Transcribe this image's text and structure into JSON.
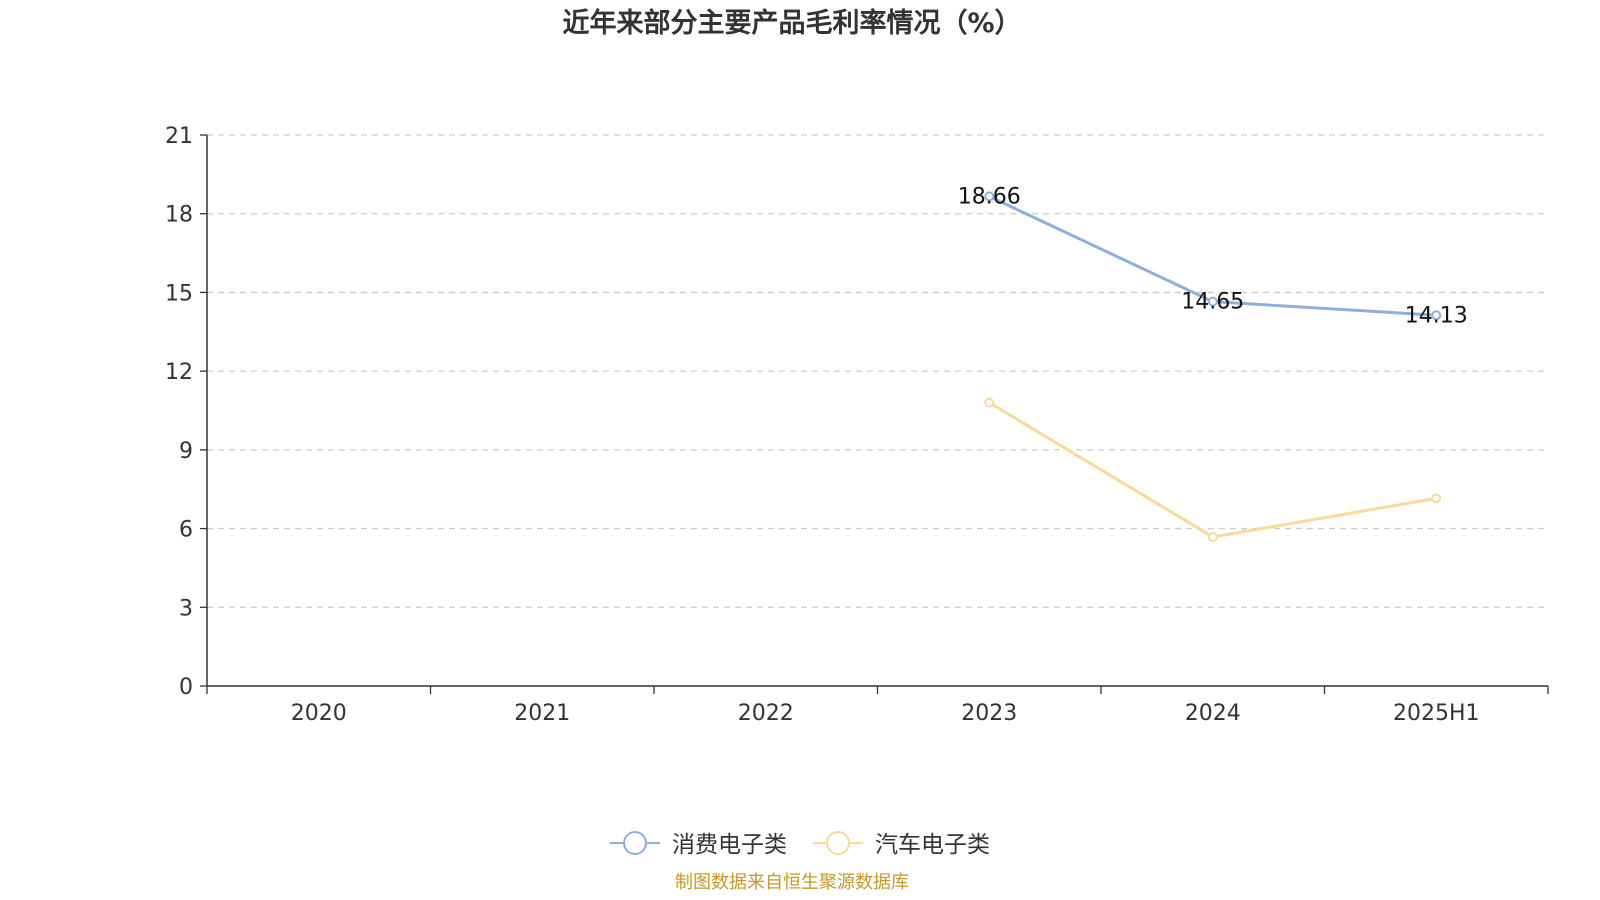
{
  "chart_data": {
    "type": "line",
    "title": "近年来部分主要产品毛利率情况（%）",
    "categories": [
      "2020",
      "2021",
      "2022",
      "2023",
      "2024",
      "2025H1"
    ],
    "ylim": [
      0,
      21
    ],
    "yticks": [
      "0",
      "3",
      "6",
      "9",
      "12",
      "15",
      "18",
      "21"
    ],
    "grid": true,
    "legend_position": "bottom-center",
    "series": [
      {
        "name": "消费电子类",
        "color": "#8eaedb",
        "values": [
          null,
          null,
          null,
          18.66,
          14.65,
          14.13
        ],
        "labels": [
          "",
          "",
          "",
          "18.66",
          "14.65",
          "14.13"
        ]
      },
      {
        "name": "汽车电子类",
        "color": "#fbd99a",
        "values": [
          null,
          null,
          null,
          10.8,
          5.68,
          7.15
        ],
        "labels": [
          "",
          "",
          "",
          "",
          "",
          ""
        ]
      }
    ]
  },
  "source": {
    "text": "制图数据来自恒生聚源数据库",
    "color": "#c8962a"
  }
}
